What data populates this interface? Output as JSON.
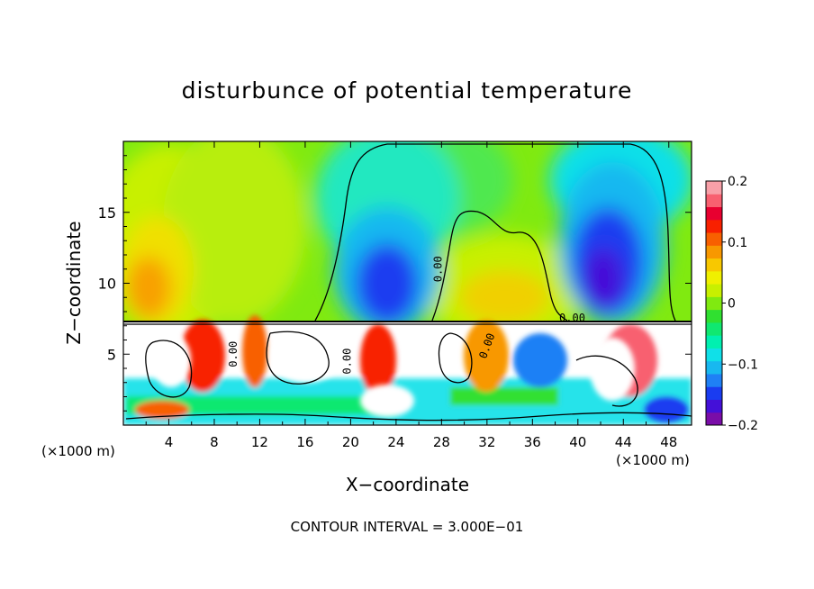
{
  "chart_data": {
    "type": "heatmap",
    "title": "disturbunce of potential temperature",
    "xlabel": "X−coordinate",
    "ylabel": "Z−coordinate",
    "x_unit": "(×1000 m)",
    "y_unit": "(×1000 m)",
    "xlim": [
      0,
      50
    ],
    "ylim": [
      0,
      20
    ],
    "x_ticks": [
      4,
      8,
      12,
      16,
      20,
      24,
      28,
      32,
      36,
      40,
      44,
      48
    ],
    "y_ticks": [
      5,
      10,
      15
    ],
    "colorbar": {
      "min": -0.2,
      "max": 0.2,
      "ticks": [
        0.2,
        0.1,
        0,
        -0.1,
        -0.2
      ],
      "tick_labels": [
        "0.2",
        "0.1",
        "0",
        "−0.1",
        "−0.2"
      ],
      "colors": [
        "#7a0da8",
        "#4410d8",
        "#1a3cf0",
        "#1f80f5",
        "#18b8f0",
        "#10e0e8",
        "#00f0b0",
        "#10e870",
        "#30e030",
        "#80ea10",
        "#c8f000",
        "#f0f000",
        "#f8c800",
        "#f89800",
        "#f86000",
        "#f82000",
        "#e80030",
        "#f86070",
        "#f8a0a8"
      ]
    },
    "contour_interval": "3.000E−01",
    "contour_labels": [
      "0.00",
      "0.00",
      "0.00",
      "0.00",
      "0.00"
    ],
    "features": [
      {
        "x": 5,
        "z": 10.5,
        "value": 0.09
      },
      {
        "x": 22,
        "z": 11,
        "value": -0.17
      },
      {
        "x": 29,
        "z": 10.5,
        "value": 0.07
      },
      {
        "x": 33,
        "z": 16,
        "value": 0.01
      },
      {
        "x": 41.5,
        "z": 11,
        "value": -0.18
      },
      {
        "x": 42,
        "z": 15.5,
        "value": -0.08
      },
      {
        "x": 10,
        "z": 17,
        "value": 0.04
      },
      {
        "x": 24,
        "z": 18,
        "value": -0.05
      }
    ]
  },
  "texts": {
    "footnote": "CONTOUR INTERVAL = 3.000E−01"
  }
}
